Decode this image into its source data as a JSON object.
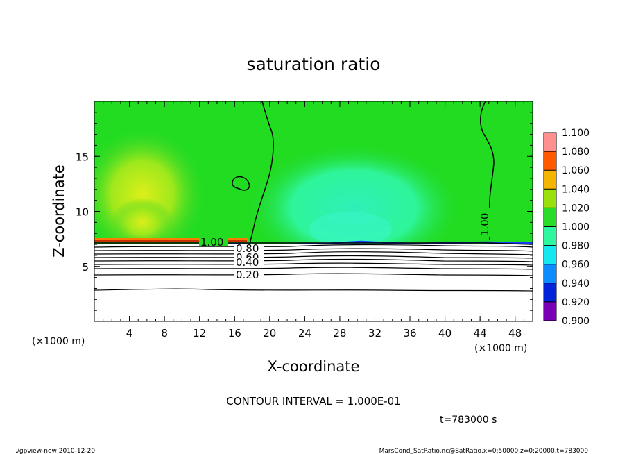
{
  "chart_data": {
    "type": "heatmap",
    "title": "saturation ratio",
    "xlabel": "X-coordinate",
    "ylabel": "Z-coordinate",
    "x_unit": "(×1000 m)",
    "y_unit": "(×1000 m)",
    "xlim": [
      0,
      50
    ],
    "ylim": [
      0,
      20
    ],
    "x_ticks": [
      4,
      8,
      12,
      16,
      20,
      24,
      28,
      32,
      36,
      40,
      44,
      48
    ],
    "y_ticks": [
      5,
      10,
      15
    ],
    "colorbar": {
      "levels": [
        "0.900",
        "0.920",
        "0.940",
        "0.960",
        "0.980",
        "1.000",
        "1.020",
        "1.040",
        "1.060",
        "1.080",
        "1.100"
      ],
      "colors": [
        "#7a00b8",
        "#00008f",
        "#0022d9",
        "#0c8cff",
        "#14e8f0",
        "#2ef7a0",
        "#28dc28",
        "#9ae00c",
        "#f5b400",
        "#ff5a00",
        "#ff9090"
      ]
    },
    "contour_interval_text": "CONTOUR INTERVAL = 1.000E-01",
    "contour_labels": [
      "1.00",
      "0.80",
      "0.60",
      "0.40",
      "0.20",
      "1.00"
    ],
    "time_text": "t=783000 s"
  },
  "footer": {
    "left": "./gpview-new   2010-12-20",
    "right": "MarsCond_SatRatio.nc@SatRatio,x=0:50000,z=0:20000,t=783000"
  }
}
